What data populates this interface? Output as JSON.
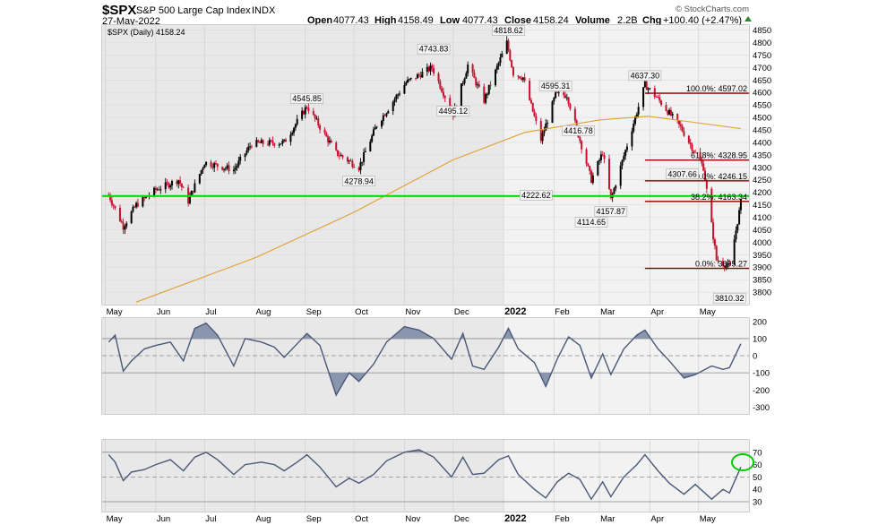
{
  "header": {
    "symbol": "$SPX",
    "name": "S&P 500 Large Cap Index",
    "exchange": "INDX",
    "date": "27-May-2022",
    "open_label": "Open",
    "open": "4077.43",
    "high_label": "High",
    "high": "4158.49",
    "low_label": "Low",
    "low": "4077.43",
    "close_label": "Close",
    "close": "4158.24",
    "volume_label": "Volume",
    "volume": "2.2B",
    "chg_label": "Chg",
    "chg": "+100.40 (+2.47%)",
    "watermark": "© StockCharts.com"
  },
  "legend": {
    "text": "$SPX (Daily) 4158.24"
  },
  "x_axis_months": [
    "May",
    "Jun",
    "Jul",
    "Aug",
    "Sep",
    "Oct",
    "Nov",
    "Dec",
    "2022",
    "Feb",
    "Mar",
    "Apr",
    "May"
  ],
  "fib_labels": [
    "100.0%: 4597.02",
    "61.8%: 4328.95",
    "50.0%: 4246.15",
    "38.2%: 4163.34",
    "0.0%: 3895.27"
  ],
  "colors": {
    "up": "#000000",
    "down": "#c8102e",
    "ma": "#e0a030",
    "support": "#00e000",
    "fib": "#8b0000",
    "osc": "#4a5878",
    "osc_fill": "#8a96ad"
  },
  "chart_data": [
    {
      "type": "line",
      "title": "$SPX (Daily) 4158.24",
      "ylim": [
        3750,
        4870
      ],
      "yticks": [
        3800,
        3850,
        3900,
        3950,
        4000,
        4050,
        4100,
        4150,
        4200,
        4250,
        4300,
        4350,
        4400,
        4450,
        4500,
        4550,
        4600,
        4650,
        4700,
        4750,
        4800,
        4850
      ],
      "series": [
        {
          "name": "$SPX",
          "x": [
            "2021-05-03",
            "2021-05-12",
            "2021-05-20",
            "2021-06-01",
            "2021-06-15",
            "2021-06-21",
            "2021-07-01",
            "2021-07-19",
            "2021-07-30",
            "2021-08-19",
            "2021-09-02",
            "2021-09-20",
            "2021-10-04",
            "2021-10-15",
            "2021-11-02",
            "2021-11-18",
            "2021-12-01",
            "2021-12-10",
            "2021-12-20",
            "2022-01-03",
            "2022-01-07",
            "2022-01-13",
            "2022-01-24",
            "2022-02-02",
            "2022-02-09",
            "2022-02-24",
            "2022-03-03",
            "2022-03-08",
            "2022-03-29",
            "2022-04-05",
            "2022-04-20",
            "2022-05-04",
            "2022-05-12",
            "2022-05-20",
            "2022-05-27"
          ],
          "close": [
            4190,
            4063,
            4150,
            4210,
            4250,
            4165,
            4320,
            4290,
            4395,
            4400,
            4545,
            4358,
            4300,
            4470,
            4640,
            4700,
            4513,
            4710,
            4568,
            4800,
            4677,
            4660,
            4410,
            4590,
            4590,
            4250,
            4360,
            4170,
            4631,
            4582,
            4460,
            4300,
            3930,
            3901,
            4158
          ]
        },
        {
          "name": "MA200",
          "x": [
            "2021-05-20",
            "2021-08-02",
            "2021-10-01",
            "2021-12-01",
            "2022-01-14",
            "2022-03-01",
            "2022-03-31",
            "2022-05-27"
          ],
          "close": [
            3760,
            3940,
            4120,
            4330,
            4440,
            4490,
            4505,
            4455
          ]
        }
      ],
      "labels": [
        {
          "x": "2021-09-02",
          "y": 4545.85,
          "text": "4545.85"
        },
        {
          "x": "2021-10-04",
          "y": 4278.94,
          "text": "4278.94"
        },
        {
          "x": "2021-11-19",
          "y": 4743.83,
          "text": "4743.83"
        },
        {
          "x": "2021-12-01",
          "y": 4495.12,
          "text": "4495.12"
        },
        {
          "x": "2022-01-04",
          "y": 4818.62,
          "text": "4818.62"
        },
        {
          "x": "2022-01-21",
          "y": 4222.62,
          "text": "4222.62"
        },
        {
          "x": "2022-02-02",
          "y": 4595.31,
          "text": "4595.31"
        },
        {
          "x": "2022-02-16",
          "y": 4416.78,
          "text": "4416.78"
        },
        {
          "x": "2022-02-24",
          "y": 4114.65,
          "text": "4114.65"
        },
        {
          "x": "2022-03-08",
          "y": 4157.87,
          "text": "4157.87"
        },
        {
          "x": "2022-03-29",
          "y": 4637.3,
          "text": "4637.30"
        },
        {
          "x": "2022-04-21",
          "y": 4307.66,
          "text": "4307.66"
        },
        {
          "x": "2022-05-20",
          "y": 3810.32,
          "text": "3810.32"
        }
      ],
      "horizontal_lines": [
        {
          "name": "support",
          "y": 4185
        },
        {
          "name": "fib-100",
          "y": 4597.02
        },
        {
          "name": "fib-61.8",
          "y": 4328.95
        },
        {
          "name": "fib-50",
          "y": 4246.15
        },
        {
          "name": "fib-38.2",
          "y": 4163.34
        },
        {
          "name": "fib-0",
          "y": 3895.27
        }
      ]
    },
    {
      "type": "area",
      "ylim": [
        -340,
        220
      ],
      "yticks": [
        200,
        100,
        0,
        -100,
        -200,
        -300
      ],
      "reference_lines": [
        100,
        0,
        -100
      ],
      "series": [
        {
          "x": [
            "2021-05-03",
            "2021-05-07",
            "2021-05-12",
            "2021-05-17",
            "2021-05-25",
            "2021-06-01",
            "2021-06-10",
            "2021-06-18",
            "2021-06-25",
            "2021-07-02",
            "2021-07-09",
            "2021-07-19",
            "2021-07-26",
            "2021-08-05",
            "2021-08-13",
            "2021-08-19",
            "2021-08-27",
            "2021-09-02",
            "2021-09-10",
            "2021-09-20",
            "2021-09-28",
            "2021-10-04",
            "2021-10-13",
            "2021-10-21",
            "2021-11-01",
            "2021-11-10",
            "2021-11-19",
            "2021-11-30",
            "2021-12-07",
            "2021-12-13",
            "2021-12-20",
            "2021-12-29",
            "2022-01-04",
            "2022-01-10",
            "2022-01-20",
            "2022-01-27",
            "2022-02-03",
            "2022-02-10",
            "2022-02-17",
            "2022-02-24",
            "2022-03-03",
            "2022-03-08",
            "2022-03-16",
            "2022-03-24",
            "2022-03-29",
            "2022-04-06",
            "2022-04-13",
            "2022-04-22",
            "2022-04-29",
            "2022-05-09",
            "2022-05-16",
            "2022-05-20",
            "2022-05-27"
          ],
          "values": [
            80,
            120,
            -90,
            -30,
            40,
            60,
            80,
            -30,
            160,
            190,
            120,
            -60,
            100,
            80,
            50,
            -10,
            70,
            130,
            60,
            -230,
            -100,
            -150,
            -50,
            80,
            170,
            150,
            100,
            -20,
            130,
            -60,
            -80,
            50,
            160,
            40,
            -40,
            -180,
            -20,
            110,
            60,
            -130,
            10,
            -110,
            40,
            120,
            150,
            40,
            -30,
            -130,
            -110,
            -60,
            -80,
            -70,
            70
          ]
        }
      ]
    },
    {
      "type": "line",
      "ylim": [
        22,
        80
      ],
      "yticks": [
        70,
        60,
        50,
        40,
        30
      ],
      "reference_lines": [
        70,
        50,
        30
      ],
      "series": [
        {
          "name": "RSI",
          "x": [
            "2021-05-03",
            "2021-05-07",
            "2021-05-12",
            "2021-05-17",
            "2021-05-25",
            "2021-06-01",
            "2021-06-10",
            "2021-06-18",
            "2021-06-25",
            "2021-07-02",
            "2021-07-09",
            "2021-07-19",
            "2021-07-26",
            "2021-08-05",
            "2021-08-13",
            "2021-08-19",
            "2021-08-27",
            "2021-09-02",
            "2021-09-10",
            "2021-09-20",
            "2021-09-28",
            "2021-10-04",
            "2021-10-13",
            "2021-10-21",
            "2021-11-01",
            "2021-11-10",
            "2021-11-19",
            "2021-11-30",
            "2021-12-07",
            "2021-12-13",
            "2021-12-20",
            "2021-12-29",
            "2022-01-04",
            "2022-01-10",
            "2022-01-20",
            "2022-01-27",
            "2022-02-03",
            "2022-02-10",
            "2022-02-17",
            "2022-02-24",
            "2022-03-03",
            "2022-03-08",
            "2022-03-16",
            "2022-03-24",
            "2022-03-29",
            "2022-04-06",
            "2022-04-13",
            "2022-04-22",
            "2022-04-29",
            "2022-05-09",
            "2022-05-16",
            "2022-05-20",
            "2022-05-27"
          ],
          "values": [
            68,
            62,
            47,
            54,
            56,
            60,
            64,
            55,
            66,
            70,
            64,
            52,
            60,
            62,
            60,
            55,
            62,
            68,
            58,
            42,
            49,
            45,
            52,
            63,
            70,
            72,
            66,
            50,
            66,
            52,
            53,
            64,
            67,
            52,
            40,
            33,
            46,
            53,
            48,
            32,
            46,
            34,
            50,
            60,
            68,
            55,
            45,
            36,
            44,
            32,
            40,
            37,
            58
          ]
        }
      ]
    }
  ]
}
